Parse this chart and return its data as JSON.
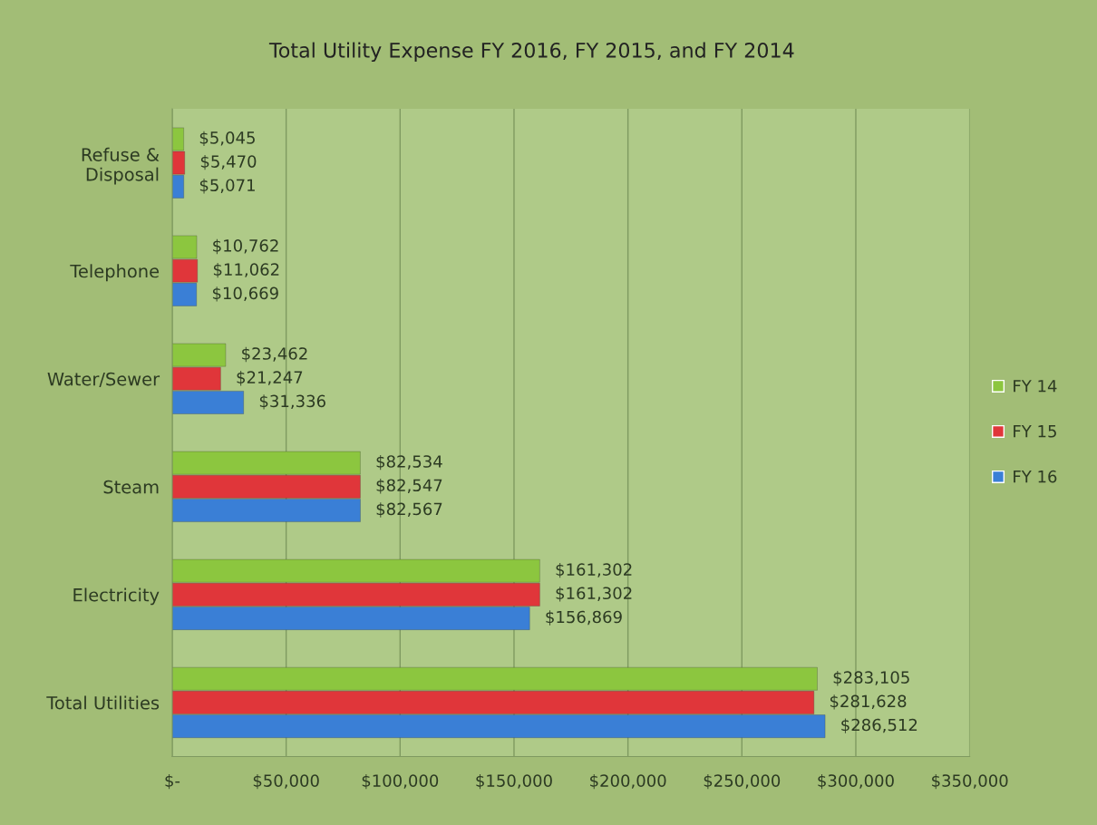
{
  "chart_data": {
    "type": "bar",
    "orientation": "horizontal",
    "title": "Total Utility Expense FY 2016, FY 2015, and FY 2014",
    "categories": [
      "Refuse &\nDisposal",
      "Telephone",
      "Water/Sewer",
      "Steam",
      "Electricity",
      "Total Utilities"
    ],
    "series": [
      {
        "name": "FY 14",
        "color": "#8cc63f",
        "values": [
          5045,
          10762,
          23462,
          82534,
          161302,
          283105
        ],
        "value_labels": [
          "$5,045",
          "$10,762",
          "$23,462",
          "$82,534",
          "$161,302",
          "$283,105"
        ]
      },
      {
        "name": "FY 15",
        "color": "#e0363a",
        "values": [
          5470,
          11062,
          21247,
          82547,
          161302,
          281628
        ],
        "value_labels": [
          "$5,470",
          "$11,062",
          "$21,247",
          "$82,547",
          "$161,302",
          "$281,628"
        ]
      },
      {
        "name": "FY 16",
        "color": "#3a7fd6",
        "values": [
          5071,
          10669,
          31336,
          82567,
          156869,
          286512
        ],
        "value_labels": [
          "$5,071",
          "$10,669",
          "$31,336",
          "$82,567",
          "$156,869",
          "$286,512"
        ]
      }
    ],
    "xlim": [
      0,
      350000
    ],
    "xticks": [
      {
        "value": 0,
        "label": "$-"
      },
      {
        "value": 50000,
        "label": "$50,000"
      },
      {
        "value": 100000,
        "label": "$100,000"
      },
      {
        "value": 150000,
        "label": "$150,000"
      },
      {
        "value": 200000,
        "label": "$200,000"
      },
      {
        "value": 250000,
        "label": "$250,000"
      },
      {
        "value": 300000,
        "label": "$300,000"
      },
      {
        "value": 350000,
        "label": "$350,000"
      }
    ],
    "grid": "x",
    "legend": "right"
  }
}
